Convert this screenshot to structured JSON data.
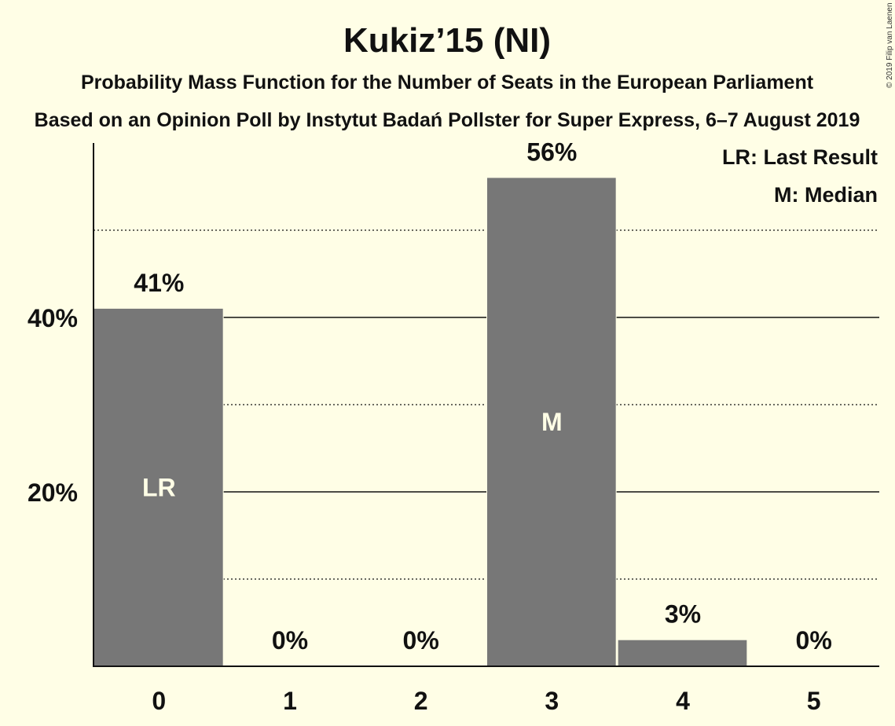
{
  "chart_data": {
    "type": "bar",
    "title": "Kukiz’15 (NI)",
    "subtitle": "Probability Mass Function for the Number of Seats in the European Parliament",
    "subtitle2": "Based on an Opinion Poll by Instytut Badań Pollster for Super Express, 6–7 August 2019",
    "categories": [
      "0",
      "1",
      "2",
      "3",
      "4",
      "5"
    ],
    "values": [
      41,
      0,
      0,
      56,
      3,
      0
    ],
    "data_labels": [
      "41%",
      "0%",
      "0%",
      "56%",
      "3%",
      "0%"
    ],
    "bar_tags": [
      "LR",
      "",
      "",
      "M",
      "",
      ""
    ],
    "y_ticks": [
      {
        "value": 20,
        "label": "20%"
      },
      {
        "value": 40,
        "label": "40%"
      }
    ],
    "minor_gridlines": [
      10,
      30,
      50
    ],
    "ylim": [
      0,
      60
    ],
    "legend_position": "top-right",
    "legend": [
      "LR: Last Result",
      "M: Median"
    ],
    "copyright": "© 2019 Filip van Laenen",
    "colors": {
      "background": "#FFFEE6",
      "bar": "#777777",
      "text": "#111111"
    }
  }
}
